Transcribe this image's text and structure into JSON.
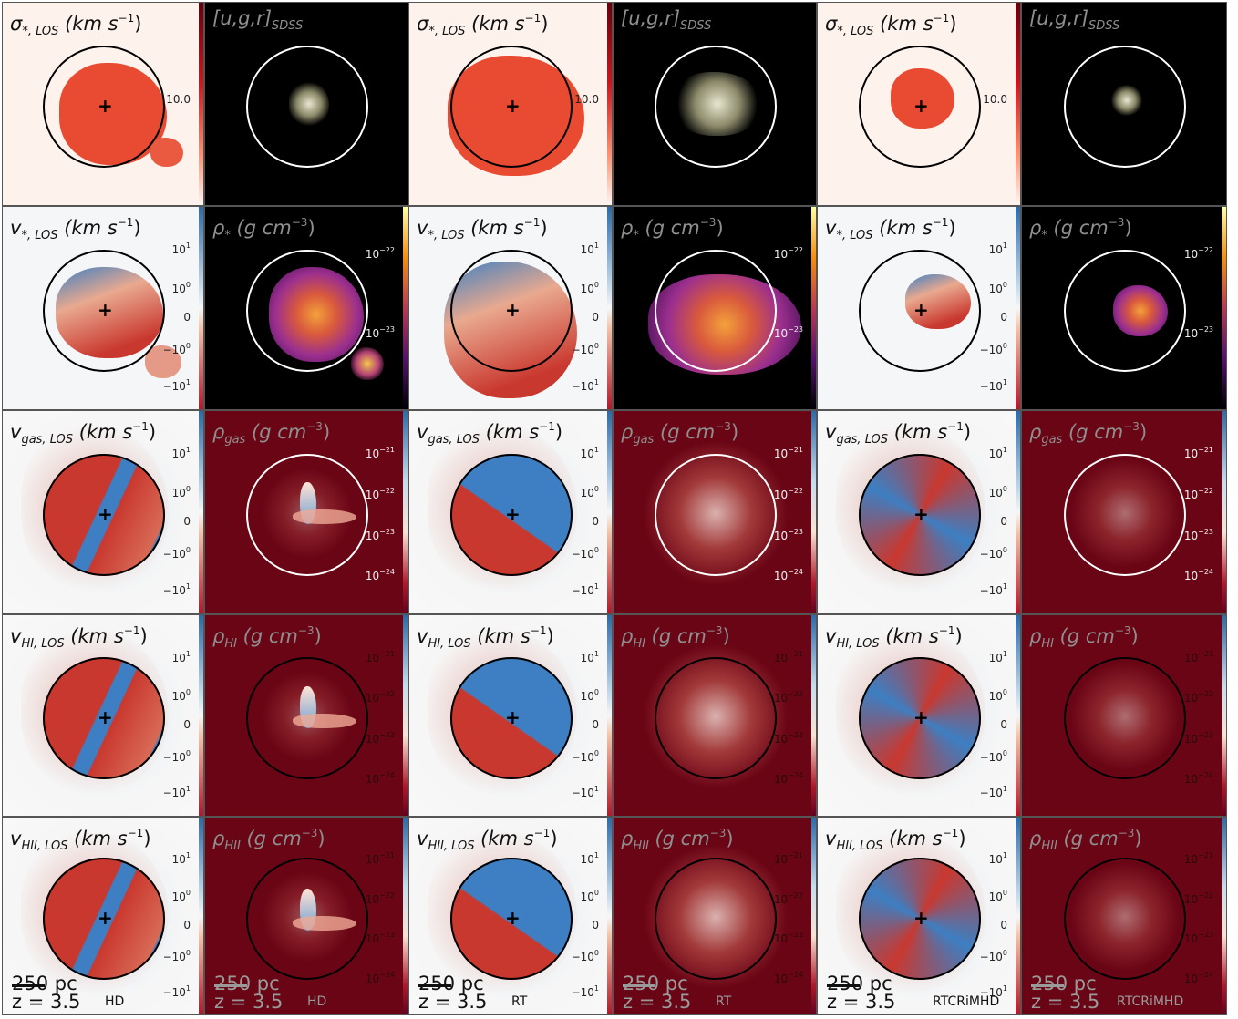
{
  "figure": {
    "redshift_label": "z = 3.5",
    "scale_label": "250 pc",
    "simulations": [
      "HD",
      "RT",
      "RTCRiMHD"
    ],
    "row_titles": {
      "sigma_star": {
        "main": "σ",
        "sub": "*, LOS",
        "unit": "(km s",
        "unit_sup": "−1",
        "unit_close": ")"
      },
      "sdss": {
        "main": "[u,g,r]",
        "sub": "SDSS"
      },
      "v_star": {
        "main": "v",
        "sub": "*, LOS",
        "unit": "(km s",
        "unit_sup": "−1",
        "unit_close": ")"
      },
      "rho_star": {
        "main": "ρ",
        "sub": "*",
        "unit": "(g cm",
        "unit_sup": "−3",
        "unit_close": ")"
      },
      "v_gas": {
        "main": "v",
        "sub": "gas, LOS",
        "unit": "(km s",
        "unit_sup": "−1",
        "unit_close": ")"
      },
      "rho_gas": {
        "main": "ρ",
        "sub": "gas",
        "unit": "(g cm",
        "unit_sup": "−3",
        "unit_close": ")"
      },
      "v_hi": {
        "main": "v",
        "sub": "HI, LOS",
        "unit": "(km s",
        "unit_sup": "−1",
        "unit_close": ")"
      },
      "rho_hi": {
        "main": "ρ",
        "sub": "HI",
        "unit": "(g cm",
        "unit_sup": "−3",
        "unit_close": ")"
      },
      "v_hii": {
        "main": "v",
        "sub": "HII, LOS",
        "unit": "(km s",
        "unit_sup": "−1",
        "unit_close": ")"
      },
      "rho_hii": {
        "main": "ρ",
        "sub": "HII",
        "unit": "(g cm",
        "unit_sup": "−3",
        "unit_close": ")"
      }
    },
    "tick_sets": {
      "sigma": [
        {
          "base": "10.0",
          "exp": ""
        }
      ],
      "vel": [
        {
          "base": "10",
          "exp": "1"
        },
        {
          "base": "10",
          "exp": "0"
        },
        {
          "base": "0",
          "exp": ""
        },
        {
          "base": "−10",
          "exp": "0"
        },
        {
          "base": "−10",
          "exp": "1"
        }
      ],
      "rho_star": [
        {
          "base": "10",
          "exp": "−22"
        },
        {
          "base": "10",
          "exp": "−23"
        }
      ],
      "rho_gas": [
        {
          "base": "10",
          "exp": "−21"
        },
        {
          "base": "10",
          "exp": "−22"
        },
        {
          "base": "10",
          "exp": "−23"
        },
        {
          "base": "10",
          "exp": "−24"
        }
      ]
    },
    "colors": {
      "velocity_red": "#c9382f",
      "velocity_blue": "#3d7fc2",
      "density_dark_red": "#6a0516",
      "sigma_bg": "#fdf2ec",
      "sigma_fill": "#e84b32",
      "inferno_mid": "#9b2f8f",
      "inferno_bright": "#f4a13b"
    }
  }
}
